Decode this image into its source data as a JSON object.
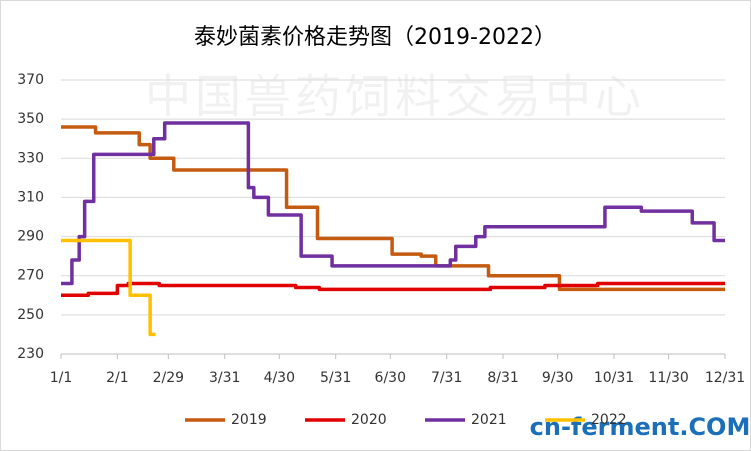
{
  "chart_data": {
    "type": "line",
    "title": "泰妙菌素价格走势图（2019-2022）",
    "watermark": "中国兽药饲料交易中心",
    "logo": "cn-ferment.COM",
    "xlim": [
      1,
      366
    ],
    "xticks": [
      {
        "value": 1,
        "label": "1/1"
      },
      {
        "value": 32,
        "label": "2/1"
      },
      {
        "value": 60,
        "label": "2/29"
      },
      {
        "value": 91,
        "label": "3/31"
      },
      {
        "value": 121,
        "label": "4/30"
      },
      {
        "value": 152,
        "label": "5/31"
      },
      {
        "value": 182,
        "label": "6/30"
      },
      {
        "value": 213,
        "label": "7/31"
      },
      {
        "value": 244,
        "label": "8/31"
      },
      {
        "value": 274,
        "label": "9/30"
      },
      {
        "value": 305,
        "label": "10/31"
      },
      {
        "value": 335,
        "label": "11/30"
      },
      {
        "value": 366,
        "label": "12/31"
      }
    ],
    "ylim": [
      230,
      370
    ],
    "yticks": [
      230,
      250,
      270,
      290,
      310,
      330,
      350,
      370
    ],
    "grid": true,
    "series": [
      {
        "name": "2019",
        "color": "#c55a11",
        "x": [
          1,
          20,
          20,
          44,
          44,
          50,
          50,
          63,
          63,
          125,
          125,
          142,
          142,
          183,
          183,
          199,
          199,
          207,
          207,
          236,
          236,
          275,
          275,
          366
        ],
        "values": [
          346,
          346,
          343,
          343,
          337,
          337,
          330,
          330,
          324,
          324,
          305,
          305,
          289,
          289,
          281,
          281,
          280,
          280,
          275,
          275,
          270,
          270,
          263,
          263
        ]
      },
      {
        "name": "2020",
        "color": "#e00000",
        "x": [
          1,
          16,
          16,
          32,
          32,
          38,
          38,
          55,
          55,
          130,
          130,
          143,
          143,
          237,
          237,
          267,
          267,
          296,
          296,
          366
        ],
        "values": [
          260,
          260,
          261,
          261,
          265,
          265,
          266,
          266,
          265,
          265,
          264,
          264,
          263,
          263,
          264,
          264,
          265,
          265,
          266,
          266
        ]
      },
      {
        "name": "2021",
        "color": "#7030a0",
        "x": [
          1,
          7,
          7,
          11,
          11,
          14,
          14,
          19,
          19,
          52,
          52,
          58,
          58,
          104,
          104,
          107,
          107,
          115,
          115,
          133,
          133,
          150,
          150,
          215,
          215,
          218,
          218,
          229,
          229,
          234,
          234,
          300,
          300,
          320,
          320,
          348,
          348,
          360,
          360,
          366
        ],
        "values": [
          266,
          266,
          278,
          278,
          290,
          290,
          308,
          308,
          332,
          332,
          340,
          340,
          348,
          348,
          315,
          315,
          310,
          310,
          301,
          301,
          280,
          280,
          275,
          275,
          278,
          278,
          285,
          285,
          290,
          290,
          295,
          295,
          305,
          305,
          303,
          303,
          297,
          297,
          288,
          288
        ]
      },
      {
        "name": "2022",
        "color": "#ffc000",
        "x": [
          1,
          39,
          39,
          50,
          50,
          53
        ],
        "values": [
          288,
          288,
          260,
          260,
          240,
          240
        ]
      }
    ]
  }
}
